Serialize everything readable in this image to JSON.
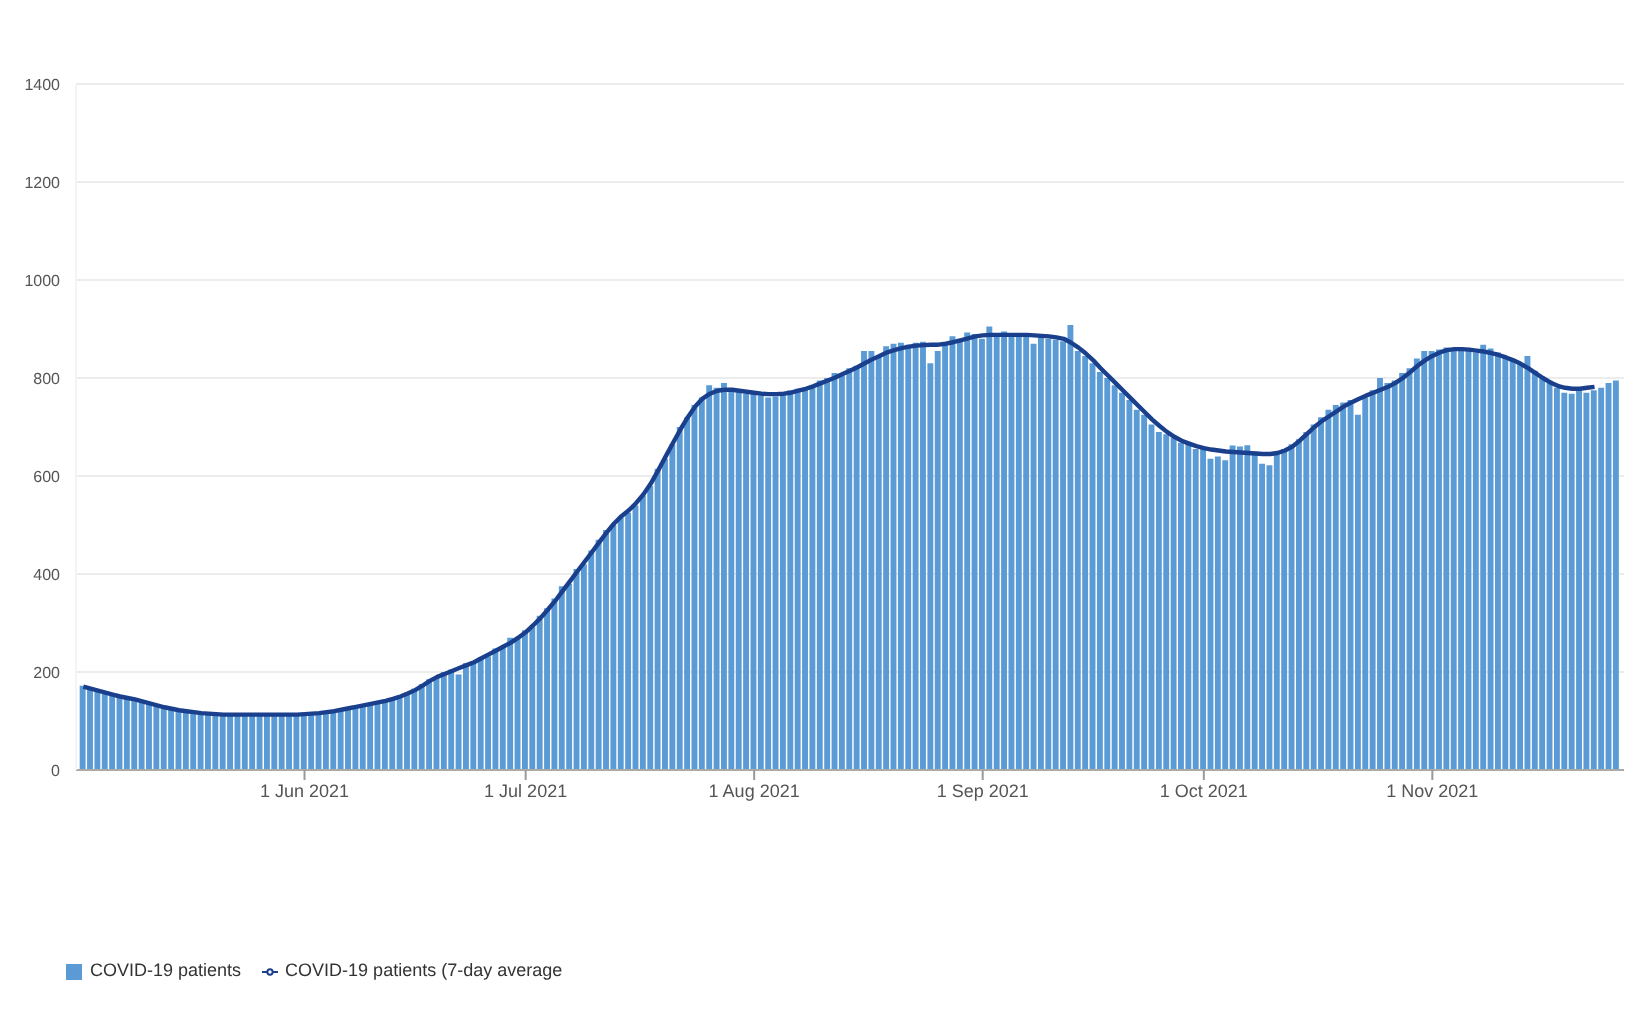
{
  "chart_data": {
    "type": "bar",
    "x": [
      "2021-05-02",
      "2021-05-03",
      "2021-05-04",
      "2021-05-05",
      "2021-05-06",
      "2021-05-07",
      "2021-05-08",
      "2021-05-09",
      "2021-05-10",
      "2021-05-11",
      "2021-05-12",
      "2021-05-13",
      "2021-05-14",
      "2021-05-15",
      "2021-05-16",
      "2021-05-17",
      "2021-05-18",
      "2021-05-19",
      "2021-05-20",
      "2021-05-21",
      "2021-05-22",
      "2021-05-23",
      "2021-05-24",
      "2021-05-25",
      "2021-05-26",
      "2021-05-27",
      "2021-05-28",
      "2021-05-29",
      "2021-05-30",
      "2021-05-31",
      "2021-06-01",
      "2021-06-02",
      "2021-06-03",
      "2021-06-04",
      "2021-06-05",
      "2021-06-06",
      "2021-06-07",
      "2021-06-08",
      "2021-06-09",
      "2021-06-10",
      "2021-06-11",
      "2021-06-12",
      "2021-06-13",
      "2021-06-14",
      "2021-06-15",
      "2021-06-16",
      "2021-06-17",
      "2021-06-18",
      "2021-06-19",
      "2021-06-20",
      "2021-06-21",
      "2021-06-22",
      "2021-06-23",
      "2021-06-24",
      "2021-06-25",
      "2021-06-26",
      "2021-06-27",
      "2021-06-28",
      "2021-06-29",
      "2021-06-30",
      "2021-07-01",
      "2021-07-02",
      "2021-07-03",
      "2021-07-04",
      "2021-07-05",
      "2021-07-06",
      "2021-07-07",
      "2021-07-08",
      "2021-07-09",
      "2021-07-10",
      "2021-07-11",
      "2021-07-12",
      "2021-07-13",
      "2021-07-14",
      "2021-07-15",
      "2021-07-16",
      "2021-07-17",
      "2021-07-18",
      "2021-07-19",
      "2021-07-20",
      "2021-07-21",
      "2021-07-22",
      "2021-07-23",
      "2021-07-24",
      "2021-07-25",
      "2021-07-26",
      "2021-07-27",
      "2021-07-28",
      "2021-07-29",
      "2021-07-30",
      "2021-07-31",
      "2021-08-01",
      "2021-08-02",
      "2021-08-03",
      "2021-08-04",
      "2021-08-05",
      "2021-08-06",
      "2021-08-07",
      "2021-08-08",
      "2021-08-09",
      "2021-08-10",
      "2021-08-11",
      "2021-08-12",
      "2021-08-13",
      "2021-08-14",
      "2021-08-15",
      "2021-08-16",
      "2021-08-17",
      "2021-08-18",
      "2021-08-19",
      "2021-08-20",
      "2021-08-21",
      "2021-08-22",
      "2021-08-23",
      "2021-08-24",
      "2021-08-25",
      "2021-08-26",
      "2021-08-27",
      "2021-08-28",
      "2021-08-29",
      "2021-08-30",
      "2021-08-31",
      "2021-09-01",
      "2021-09-02",
      "2021-09-03",
      "2021-09-04",
      "2021-09-05",
      "2021-09-06",
      "2021-09-07",
      "2021-09-08",
      "2021-09-09",
      "2021-09-10",
      "2021-09-11",
      "2021-09-12",
      "2021-09-13",
      "2021-09-14",
      "2021-09-15",
      "2021-09-16",
      "2021-09-17",
      "2021-09-18",
      "2021-09-19",
      "2021-09-20",
      "2021-09-21",
      "2021-09-22",
      "2021-09-23",
      "2021-09-24",
      "2021-09-25",
      "2021-09-26",
      "2021-09-27",
      "2021-09-28",
      "2021-09-29",
      "2021-09-30",
      "2021-10-01",
      "2021-10-02",
      "2021-10-03",
      "2021-10-04",
      "2021-10-05",
      "2021-10-06",
      "2021-10-07",
      "2021-10-08",
      "2021-10-09",
      "2021-10-10",
      "2021-10-11",
      "2021-10-12",
      "2021-10-13",
      "2021-10-14",
      "2021-10-15",
      "2021-10-16",
      "2021-10-17",
      "2021-10-18",
      "2021-10-19",
      "2021-10-20",
      "2021-10-21",
      "2021-10-22",
      "2021-10-23",
      "2021-10-24",
      "2021-10-25",
      "2021-10-26",
      "2021-10-27",
      "2021-10-28",
      "2021-10-29",
      "2021-10-30",
      "2021-10-31",
      "2021-11-01",
      "2021-11-02",
      "2021-11-03",
      "2021-11-04",
      "2021-11-05",
      "2021-11-06",
      "2021-11-07",
      "2021-11-08",
      "2021-11-09",
      "2021-11-10",
      "2021-11-11",
      "2021-11-12",
      "2021-11-13",
      "2021-11-14",
      "2021-11-15",
      "2021-11-16",
      "2021-11-17",
      "2021-11-18",
      "2021-11-19",
      "2021-11-20",
      "2021-11-21",
      "2021-11-22",
      "2021-11-23",
      "2021-11-24",
      "2021-11-25",
      "2021-11-26"
    ],
    "series": [
      {
        "name": "COVID-19 patients",
        "color": "#5b9bd5",
        "values": [
          172,
          165,
          160,
          156,
          152,
          148,
          146,
          143,
          141,
          135,
          130,
          128,
          124,
          121,
          119,
          117,
          115,
          114,
          113,
          112,
          113,
          112,
          113,
          114,
          112,
          113,
          114,
          112,
          113,
          112,
          115,
          114,
          117,
          119,
          122,
          124,
          127,
          130,
          133,
          136,
          139,
          142,
          146,
          152,
          158,
          166,
          175,
          185,
          188,
          200,
          205,
          195,
          218,
          222,
          230,
          232,
          248,
          250,
          270,
          268,
          285,
          292,
          315,
          330,
          350,
          375,
          380,
          410,
          420,
          448,
          470,
          490,
          500,
          515,
          525,
          540,
          560,
          580,
          615,
          635,
          665,
          700,
          720,
          745,
          760,
          785,
          780,
          790,
          772,
          775,
          768,
          770,
          765,
          760,
          762,
          770,
          775,
          778,
          780,
          785,
          795,
          800,
          810,
          805,
          820,
          825,
          855,
          855,
          845,
          865,
          870,
          872,
          868,
          872,
          874,
          830,
          855,
          868,
          885,
          880,
          893,
          890,
          880,
          905,
          885,
          895,
          890,
          890,
          885,
          870,
          890,
          880,
          878,
          875,
          908,
          855,
          845,
          830,
          812,
          800,
          785,
          770,
          755,
          735,
          725,
          705,
          690,
          685,
          678,
          668,
          670,
          655,
          660,
          635,
          640,
          632,
          662,
          660,
          663,
          650,
          625,
          622,
          650,
          655,
          665,
          675,
          690,
          705,
          720,
          735,
          745,
          750,
          755,
          725,
          760,
          775,
          800,
          790,
          795,
          810,
          820,
          840,
          855,
          855,
          858,
          862,
          855,
          860,
          856,
          852,
          868,
          860,
          852,
          845,
          838,
          830,
          845,
          815,
          800,
          795,
          780,
          770,
          768,
          775,
          770,
          775,
          780,
          790,
          795
        ]
      },
      {
        "name": "COVID-19 patients (7-day average",
        "type": "line",
        "color": "#1a3f8c",
        "values": [
          170,
          166,
          162,
          158,
          154,
          150,
          147,
          144,
          140,
          136,
          132,
          128,
          125,
          122,
          120,
          118,
          116,
          115,
          114,
          113,
          113,
          113,
          113,
          113,
          113,
          113,
          113,
          113,
          113,
          113,
          114,
          115,
          116,
          118,
          120,
          123,
          126,
          129,
          132,
          135,
          138,
          141,
          145,
          150,
          156,
          163,
          172,
          182,
          190,
          196,
          202,
          208,
          214,
          220,
          228,
          236,
          244,
          252,
          260,
          270,
          281,
          295,
          310,
          327,
          345,
          365,
          385,
          405,
          425,
          445,
          465,
          485,
          503,
          518,
          530,
          545,
          563,
          585,
          612,
          640,
          668,
          695,
          720,
          742,
          758,
          768,
          774,
          776,
          776,
          774,
          772,
          770,
          768,
          767,
          767,
          768,
          770,
          774,
          778,
          783,
          789,
          795,
          801,
          808,
          815,
          822,
          830,
          838,
          845,
          852,
          857,
          861,
          864,
          866,
          867,
          868,
          868,
          870,
          873,
          877,
          881,
          885,
          887,
          888,
          888,
          888,
          888,
          888,
          888,
          887,
          886,
          885,
          883,
          880,
          872,
          862,
          850,
          836,
          820,
          805,
          790,
          775,
          760,
          745,
          730,
          715,
          702,
          690,
          680,
          672,
          666,
          661,
          657,
          654,
          652,
          650,
          649,
          648,
          647,
          646,
          645,
          645,
          647,
          652,
          660,
          672,
          686,
          700,
          712,
          722,
          732,
          742,
          750,
          757,
          764,
          770,
          776,
          782,
          790,
          800,
          812,
          825,
          836,
          845,
          852,
          857,
          859,
          859,
          858,
          856,
          854,
          851,
          847,
          842,
          836,
          829,
          820,
          810,
          800,
          791,
          784,
          780,
          778,
          778,
          780,
          782,
          null,
          null,
          null
        ]
      }
    ],
    "xlim": [
      "2021-05-01",
      "2021-11-27"
    ],
    "xticks": [
      {
        "value": "2021-06-01",
        "label": "1 Jun 2021"
      },
      {
        "value": "2021-07-01",
        "label": "1 Jul 2021"
      },
      {
        "value": "2021-08-01",
        "label": "1 Aug 2021"
      },
      {
        "value": "2021-09-01",
        "label": "1 Sep 2021"
      },
      {
        "value": "2021-10-01",
        "label": "1 Oct 2021"
      },
      {
        "value": "2021-11-01",
        "label": "1 Nov 2021"
      }
    ],
    "ylim": [
      0,
      1400
    ],
    "yticks": [
      0,
      200,
      400,
      600,
      800,
      1000,
      1200,
      1400
    ],
    "grid": "y",
    "legend": "bottom left",
    "marker": "none",
    "line_style": "solid"
  }
}
